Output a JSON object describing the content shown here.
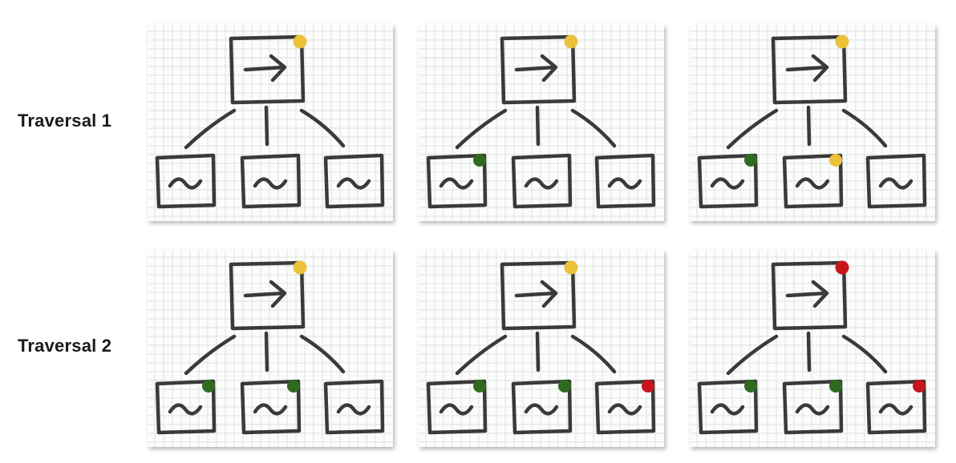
{
  "rows": [
    {
      "label": "Traversal 1",
      "panels": [
        {
          "parent": {
            "marker": "yellow"
          },
          "children": [
            {
              "marker": null
            },
            {
              "marker": null
            },
            {
              "marker": null
            }
          ]
        },
        {
          "parent": {
            "marker": "yellow"
          },
          "children": [
            {
              "marker": "green"
            },
            {
              "marker": null
            },
            {
              "marker": null
            }
          ]
        },
        {
          "parent": {
            "marker": "yellow"
          },
          "children": [
            {
              "marker": "green"
            },
            {
              "marker": "yellow"
            },
            {
              "marker": null
            }
          ]
        }
      ]
    },
    {
      "label": "Traversal 2",
      "panels": [
        {
          "parent": {
            "marker": "yellow"
          },
          "children": [
            {
              "marker": "green"
            },
            {
              "marker": "green"
            },
            {
              "marker": null
            }
          ]
        },
        {
          "parent": {
            "marker": "yellow"
          },
          "children": [
            {
              "marker": "green"
            },
            {
              "marker": "green"
            },
            {
              "marker": "red"
            }
          ]
        },
        {
          "parent": {
            "marker": "red"
          },
          "children": [
            {
              "marker": "green"
            },
            {
              "marker": "green"
            },
            {
              "marker": "red"
            }
          ]
        }
      ]
    }
  ],
  "colors": {
    "yellow": "#ecc23a",
    "green": "#2e6b1f",
    "red": "#c8141b",
    "ink": "#3a3a3a",
    "grid": "#dde3dd",
    "paper": "#fbfcfb"
  },
  "icons": {
    "parent": "arrow-right-icon",
    "child": "wave-icon"
  }
}
